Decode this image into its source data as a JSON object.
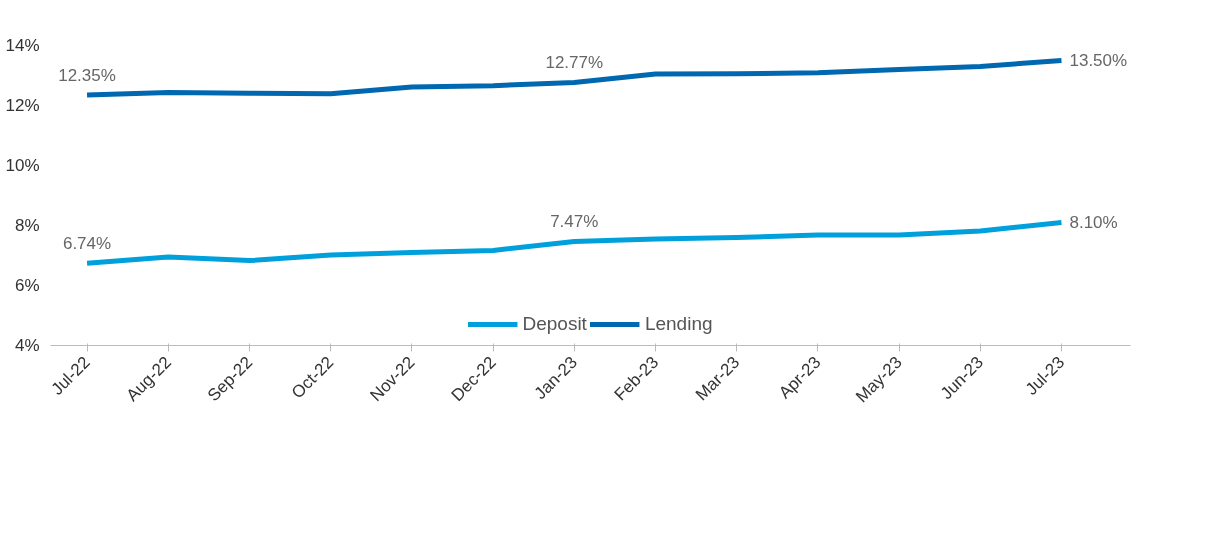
{
  "chart_data": {
    "type": "line",
    "categories": [
      "Jul-22",
      "Aug-22",
      "Sep-22",
      "Oct-22",
      "Nov-22",
      "Dec-22",
      "Jan-23",
      "Feb-23",
      "Mar-23",
      "Apr-23",
      "May-23",
      "Jun-23",
      "Jul-23"
    ],
    "series": [
      {
        "name": "Deposit",
        "color": "#00a0dc",
        "values": [
          6.74,
          6.95,
          6.83,
          7.02,
          7.1,
          7.17,
          7.47,
          7.55,
          7.6,
          7.68,
          7.68,
          7.82,
          8.1
        ],
        "value_labels": [
          "6.74%",
          null,
          null,
          null,
          null,
          null,
          "7.47%",
          null,
          null,
          null,
          null,
          null,
          "8.10%"
        ]
      },
      {
        "name": "Lending",
        "color": "#0068b0",
        "values": [
          12.35,
          12.43,
          12.41,
          12.39,
          12.62,
          12.66,
          12.77,
          13.05,
          13.06,
          13.09,
          13.2,
          13.3,
          13.5
        ],
        "value_labels": [
          "12.35%",
          null,
          null,
          null,
          null,
          null,
          "12.77%",
          null,
          null,
          null,
          null,
          null,
          "13.50%"
        ]
      }
    ],
    "ylim": [
      4,
      14
    ],
    "yticks": [
      {
        "value": 4,
        "label": "4%"
      },
      {
        "value": 6,
        "label": "6%"
      },
      {
        "value": 8,
        "label": "8%"
      },
      {
        "value": 10,
        "label": "10%"
      },
      {
        "value": 12,
        "label": "12%"
      },
      {
        "value": 14,
        "label": "14%"
      }
    ],
    "grid": false,
    "legend": "bottom",
    "marker": "none",
    "line_style": "solid"
  }
}
